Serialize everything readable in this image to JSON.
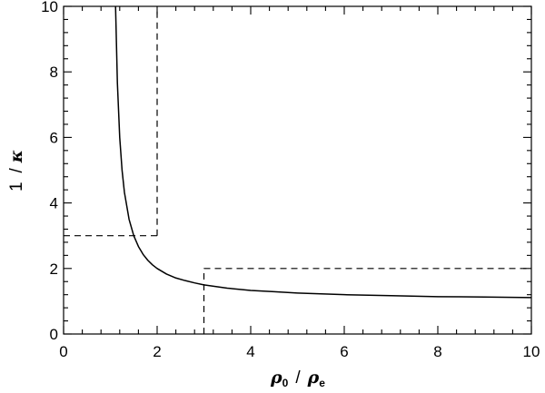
{
  "chart_data": {
    "type": "line",
    "xlabel": {
      "numerator": "ρ",
      "numerator_sub": "0",
      "slash": "/",
      "denominator": "ρ",
      "denominator_sub": "e"
    },
    "ylabel": {
      "one": "1",
      "slash": "/",
      "symbol": "κ"
    },
    "xlim": [
      0,
      10
    ],
    "ylim": [
      0,
      10
    ],
    "x_ticks": [
      0,
      2,
      4,
      6,
      8,
      10
    ],
    "x_tick_labels": [
      "0",
      "2",
      "4",
      "6",
      "8",
      "10"
    ],
    "y_ticks": [
      0,
      2,
      4,
      6,
      8,
      10
    ],
    "y_tick_labels": [
      "0",
      "2",
      "4",
      "6",
      "8",
      "10"
    ],
    "x_minor_step": 0.4,
    "y_minor_step": 0.4,
    "grid": false,
    "series": [
      {
        "style": "solid",
        "color": "#000000",
        "x": [
          1.111,
          1.15,
          1.2,
          1.25,
          1.3,
          1.4,
          1.5,
          1.6,
          1.7,
          1.8,
          1.9,
          2,
          2.2,
          2.4,
          2.6,
          2.8,
          3,
          3.5,
          4,
          4.5,
          5,
          6,
          7,
          8,
          9,
          10
        ],
        "y": [
          10,
          7.67,
          6,
          5,
          4.33,
          3.5,
          3,
          2.67,
          2.43,
          2.25,
          2.11,
          2,
          1.83,
          1.71,
          1.63,
          1.56,
          1.5,
          1.4,
          1.33,
          1.29,
          1.25,
          1.2,
          1.17,
          1.14,
          1.13,
          1.11
        ]
      }
    ],
    "reference_lines": [
      {
        "style": "dashed",
        "x": [
          2,
          2
        ],
        "y": [
          3,
          10
        ]
      },
      {
        "style": "dashed",
        "x": [
          0,
          2
        ],
        "y": [
          3,
          3
        ]
      },
      {
        "style": "dashed",
        "x": [
          3,
          3
        ],
        "y": [
          0,
          2
        ]
      },
      {
        "style": "dashed",
        "x": [
          3,
          10
        ],
        "y": [
          2,
          2
        ]
      }
    ]
  }
}
